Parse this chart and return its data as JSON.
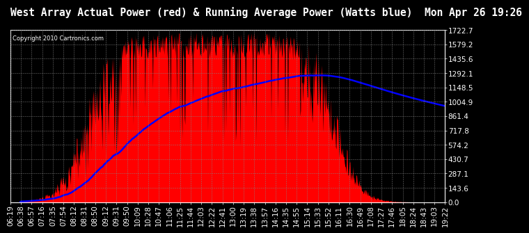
{
  "title": "West Array Actual Power (red) & Running Average Power (Watts blue)  Mon Apr 26 19:26",
  "copyright": "Copyright 2010 Cartronics.com",
  "background_color": "#000000",
  "plot_bg_color": "#000000",
  "ytick_labels": [
    "0.0",
    "143.6",
    "287.1",
    "430.7",
    "574.2",
    "717.8",
    "861.4",
    "1004.9",
    "1148.5",
    "1292.1",
    "1435.6",
    "1579.2",
    "1722.7"
  ],
  "ytick_values": [
    0.0,
    143.6,
    287.1,
    430.7,
    574.2,
    717.8,
    861.4,
    1004.9,
    1148.5,
    1292.1,
    1435.6,
    1579.2,
    1722.7
  ],
  "ymax": 1722.7,
  "ymin": 0.0,
  "xtick_labels": [
    "06:19",
    "06:38",
    "06:57",
    "07:16",
    "07:35",
    "07:54",
    "08:12",
    "08:31",
    "08:50",
    "09:12",
    "09:31",
    "09:50",
    "10:09",
    "10:28",
    "10:47",
    "11:06",
    "11:25",
    "11:44",
    "12:03",
    "12:22",
    "12:41",
    "13:00",
    "13:19",
    "13:38",
    "13:57",
    "14:16",
    "14:35",
    "14:55",
    "15:14",
    "15:33",
    "15:52",
    "16:11",
    "16:30",
    "16:49",
    "17:08",
    "17:27",
    "17:46",
    "18:05",
    "18:24",
    "18:43",
    "19:03",
    "19:22"
  ],
  "fill_color": "#ff0000",
  "line_color": "#0000ff",
  "title_color": "#ffffff",
  "tick_color": "#ffffff",
  "grid_color": "#888888",
  "title_fontsize": 10.5,
  "tick_fontsize": 7.5,
  "peak_power": 1700.0,
  "avg_peak": 1270.0
}
